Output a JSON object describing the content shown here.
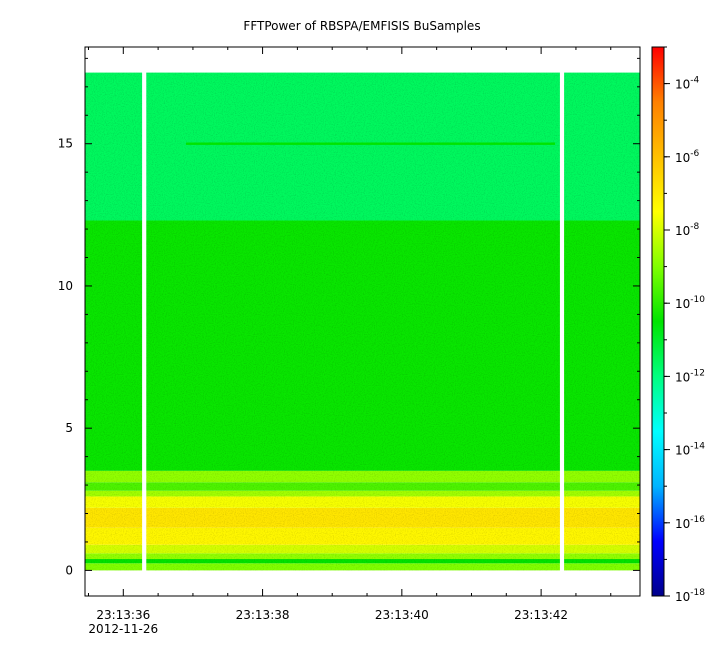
{
  "chart_data": {
    "type": "heatmap",
    "title": "FFTPower of RBSPA/EMFISIS  BuSamples",
    "xlabel": "",
    "ylabel": "",
    "x_ticks": [
      {
        "label": "23:13:36",
        "sublabel": "2012-11-26",
        "seconds": 36
      },
      {
        "label": "23:13:38",
        "seconds": 38
      },
      {
        "label": "23:13:40",
        "seconds": 40
      },
      {
        "label": "23:13:42",
        "seconds": 42
      }
    ],
    "xlim_seconds": [
      35.45,
      43.42
    ],
    "y_ticks": [
      0,
      5,
      10,
      15
    ],
    "ylim": [
      -0.9,
      18.4
    ],
    "data_yrange": [
      0,
      17.5
    ],
    "data_gaps_seconds": [
      [
        36.27,
        36.33
      ],
      [
        42.27,
        42.33
      ]
    ],
    "colorbar": {
      "scale": "log",
      "range": [
        1e-18,
        0.001
      ],
      "tick_exponents": [
        -4,
        -6,
        -8,
        -10,
        -12,
        -14,
        -16,
        -18
      ],
      "tick_labels": [
        "10",
        "10",
        "10",
        "10",
        "10",
        "10",
        "10",
        "10"
      ],
      "colors": [
        "#00008b",
        "#0000ff",
        "#00b4ff",
        "#00ffff",
        "#00ff80",
        "#00e400",
        "#80ff00",
        "#ffff00",
        "#ffc000",
        "#ff8000",
        "#ff0000"
      ]
    },
    "bands": [
      {
        "y": [
          0.0,
          0.25
        ],
        "log10_power": -9.0
      },
      {
        "y": [
          0.25,
          0.4
        ],
        "log10_power": -10.5
      },
      {
        "y": [
          0.4,
          0.6
        ],
        "log10_power": -8.8
      },
      {
        "y": [
          0.6,
          0.9
        ],
        "log10_power": -8.0
      },
      {
        "y": [
          0.9,
          1.5
        ],
        "log10_power": -7.3
      },
      {
        "y": [
          1.5,
          2.2
        ],
        "log10_power": -6.9
      },
      {
        "y": [
          2.2,
          2.6
        ],
        "log10_power": -7.6
      },
      {
        "y": [
          2.6,
          2.8
        ],
        "log10_power": -8.6
      },
      {
        "y": [
          2.8,
          3.1
        ],
        "log10_power": -9.6
      },
      {
        "y": [
          3.1,
          3.5
        ],
        "log10_power": -8.8
      },
      {
        "y": [
          3.5,
          12.3
        ],
        "log10_power": -10.4
      },
      {
        "y": [
          12.3,
          17.5
        ],
        "log10_power": -11.6
      }
    ],
    "lines": [
      {
        "y": 15.0,
        "x_range_seconds": [
          36.9,
          42.2
        ],
        "log10_power": -10.5
      }
    ],
    "grid": false
  }
}
